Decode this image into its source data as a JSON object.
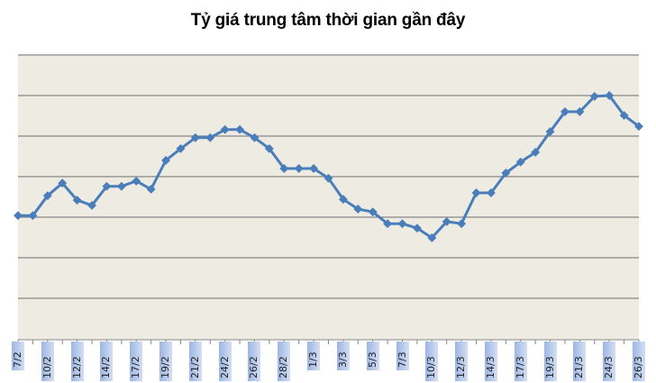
{
  "chart_data": {
    "type": "line",
    "title": "Tỷ giá trung tâm thời gian gần đây",
    "xlabel": "",
    "ylabel": "",
    "y_tick_labels_visible": false,
    "y_units": "relative (gridline = 1 unit, no axis labels shown)",
    "ylim": [
      0,
      7
    ],
    "grid": true,
    "legend": "none",
    "categories": [
      "7/2",
      "",
      "10/2",
      "",
      "12/2",
      "",
      "14/2",
      "",
      "17/2",
      "",
      "19/2",
      "",
      "21/2",
      "",
      "24/2",
      "",
      "26/2",
      "",
      "28/2",
      "",
      "1/3",
      "",
      "3/3",
      "",
      "5/3",
      "",
      "7/3",
      "",
      "10/3",
      "",
      "12/3",
      "",
      "14/3",
      "",
      "17/3",
      "",
      "19/3",
      "",
      "21/3",
      "",
      "24/3",
      "",
      "26/3"
    ],
    "series": [
      {
        "name": "Tỷ giá trung tâm",
        "color": "#4a7ebb",
        "values": [
          3.04,
          3.04,
          3.53,
          3.84,
          3.42,
          3.29,
          3.76,
          3.76,
          3.89,
          3.69,
          4.4,
          4.69,
          4.96,
          4.96,
          5.16,
          5.16,
          4.96,
          4.69,
          4.2,
          4.2,
          4.2,
          3.96,
          3.44,
          3.2,
          3.13,
          2.84,
          2.84,
          2.73,
          2.49,
          2.89,
          2.84,
          3.6,
          3.6,
          4.09,
          4.36,
          4.6,
          5.11,
          5.6,
          5.6,
          5.98,
          6.0,
          5.51,
          5.24
        ]
      }
    ]
  },
  "style": {
    "plot_bg": "#eeebe2",
    "grid_color": "#878787",
    "line_color": "#4a7ebb",
    "label_bg": "#9db6e3"
  }
}
